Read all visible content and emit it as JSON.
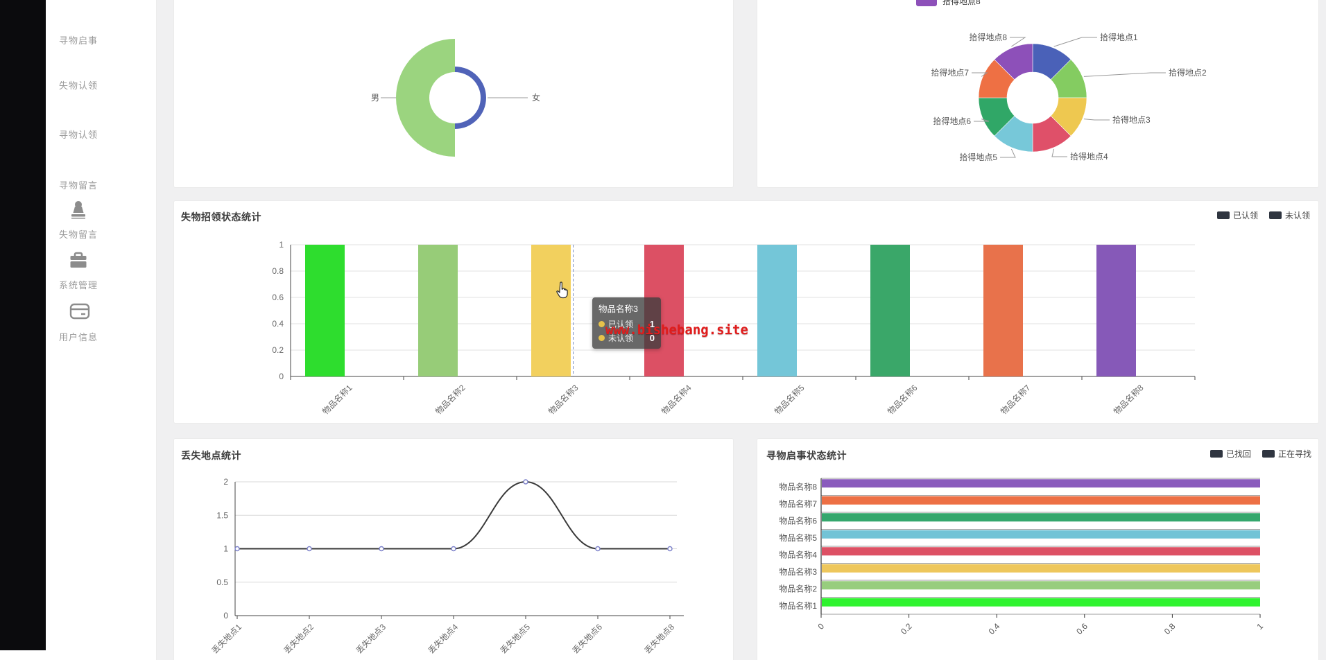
{
  "watermark": {
    "text": "www.bishebang.site",
    "color": "#e01c1c"
  },
  "sidebar": {
    "items": [
      {
        "label": "寻物启事",
        "icon": "grid-icon"
      },
      {
        "label": "失物认领",
        "icon": "grid-icon"
      },
      {
        "label": "寻物认领",
        "icon": "grid-icon"
      },
      {
        "label": "寻物留言",
        "icon": "grid-icon"
      },
      {
        "label": "失物留言",
        "icon": "stamp-icon"
      },
      {
        "label": "系统管理",
        "icon": "briefcase-icon"
      },
      {
        "label": "用户信息",
        "icon": "card-icon"
      }
    ]
  },
  "chart_data": [
    {
      "id": "gender",
      "type": "pie",
      "variant": "rose",
      "title": "",
      "labels": [
        "男",
        "女"
      ],
      "values": [
        2,
        1
      ],
      "colors": [
        "#9bd47f",
        "#5063b8"
      ],
      "legend_position": "none"
    },
    {
      "id": "locations",
      "type": "pie",
      "variant": "donut",
      "labels": [
        "拾得地点1",
        "拾得地点2",
        "拾得地点3",
        "拾得地点4",
        "拾得地点5",
        "拾得地点6",
        "拾得地点7",
        "拾得地点8"
      ],
      "values": [
        1,
        1,
        1,
        1,
        1,
        1,
        1,
        1
      ],
      "colors": [
        "#4a61b8",
        "#84cc61",
        "#eec850",
        "#df5069",
        "#77c8d9",
        "#30a767",
        "#ee7044",
        "#8d50b9"
      ],
      "legend_visible_item": "拾得地点8",
      "legend_color": "#8d50b9",
      "legend_position": "top-cut-off"
    },
    {
      "id": "claim_status",
      "type": "bar",
      "title": "失物招领状态统计",
      "legend": [
        "已认领",
        "未认领"
      ],
      "legend_position": "top-right",
      "categories": [
        "物品名称1",
        "物品名称2",
        "物品名称3",
        "物品名称4",
        "物品名称5",
        "物品名称6",
        "物品名称7",
        "物品名称8"
      ],
      "series": [
        {
          "name": "已认领",
          "values": [
            1,
            1,
            1,
            1,
            1,
            1,
            1,
            1
          ]
        },
        {
          "name": "未认领",
          "values": [
            0,
            0,
            0,
            0,
            0,
            0,
            0,
            0
          ]
        }
      ],
      "bar_colors": [
        "#2edd2e",
        "#97cc78",
        "#f2d05e",
        "#dc5064",
        "#74c6d8",
        "#3aa769",
        "#e8724b",
        "#8659b8"
      ],
      "yticks": [
        "0",
        "0.2",
        "0.4",
        "0.6",
        "0.8",
        "1"
      ],
      "ylim": [
        0,
        1
      ],
      "grid": true,
      "hovered_category": "物品名称3",
      "tooltip": {
        "title": "物品名称3",
        "rows": [
          {
            "name": "已认领",
            "value": "1"
          },
          {
            "name": "未认领",
            "value": "0"
          }
        ],
        "marker_color": "#e6c24a"
      }
    },
    {
      "id": "lost_location",
      "type": "line",
      "title": "丢失地点统计",
      "categories": [
        "丢失地点1",
        "丢失地点2",
        "丢失地点3",
        "丢失地点4",
        "丢失地点5",
        "丢失地点6",
        "丢失地点8"
      ],
      "values": [
        1,
        1,
        1,
        1,
        2,
        1,
        1
      ],
      "yticks": [
        "0",
        "0.5",
        "1",
        "1.5",
        "2"
      ],
      "ylim": [
        0,
        2
      ],
      "grid": true,
      "line_color": "#3a3a3a",
      "marker_color": "#7b80c9"
    },
    {
      "id": "notice_status",
      "type": "bar-horizontal",
      "title": "寻物启事状态统计",
      "legend": [
        "已找回",
        "正在寻找"
      ],
      "legend_position": "top-right",
      "categories_top_to_bottom": [
        "物品名称8",
        "物品名称7",
        "物品名称6",
        "物品名称5",
        "物品名称4",
        "物品名称3",
        "物品名称2",
        "物品名称1"
      ],
      "series": [
        {
          "name": "已找回",
          "values": [
            1,
            1,
            1,
            1,
            1,
            1,
            1,
            1
          ]
        },
        {
          "name": "正在寻找",
          "values": [
            0,
            0,
            0,
            0,
            0,
            0,
            0,
            0
          ]
        }
      ],
      "bar_colors_top_to_bottom": [
        "#8a5bbd",
        "#ed7045",
        "#35a76d",
        "#72c3d6",
        "#dd5064",
        "#eec75c",
        "#97cd7e",
        "#2ff32f"
      ],
      "xticks": [
        "0",
        "0.2",
        "0.4",
        "0.6",
        "0.8",
        "1"
      ],
      "xlim": [
        0,
        1
      ],
      "grid": false
    }
  ],
  "legend_swatch_color": "#2f3540"
}
